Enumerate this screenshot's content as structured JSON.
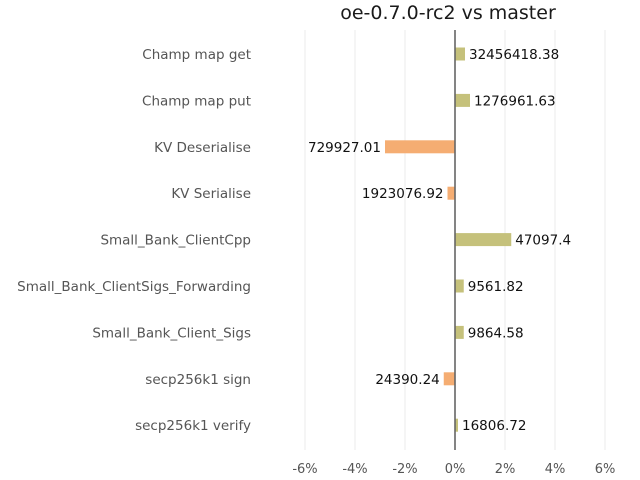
{
  "chart_data": {
    "type": "bar",
    "orientation": "horizontal",
    "title": "oe-0.7.0-rc2 vs master",
    "xlabel": "",
    "ylabel": "",
    "xlim": [
      -0.06,
      0.06
    ],
    "xticks": [
      -0.06,
      -0.04,
      -0.02,
      0,
      0.02,
      0.04,
      0.06
    ],
    "xtick_labels": [
      "-6%",
      "-4%",
      "-2%",
      "0%",
      "2%",
      "4%",
      "6%"
    ],
    "grid": "vertical",
    "categories": [
      "Champ map get",
      "Champ map put",
      "KV Deserialise",
      "KV Serialise",
      "Small_Bank_ClientCpp",
      "Small_Bank_ClientSigs_Forwarding",
      "Small_Bank_Client_Sigs",
      "secp256k1 sign",
      "secp256k1 verify"
    ],
    "values": [
      0.004,
      0.006,
      -0.028,
      -0.003,
      0.0225,
      0.0035,
      0.0035,
      -0.0045,
      0.0012
    ],
    "data_labels": [
      "32456418.38",
      "1276961.63",
      "729927.01",
      "1923076.92",
      "47097.4",
      "9561.82",
      "9864.58",
      "24390.24",
      "16806.72"
    ],
    "colors": {
      "positive": "#c5c17b",
      "negative": "#f5ad72",
      "axis": "#666666",
      "grid": "#ebebeb"
    }
  }
}
